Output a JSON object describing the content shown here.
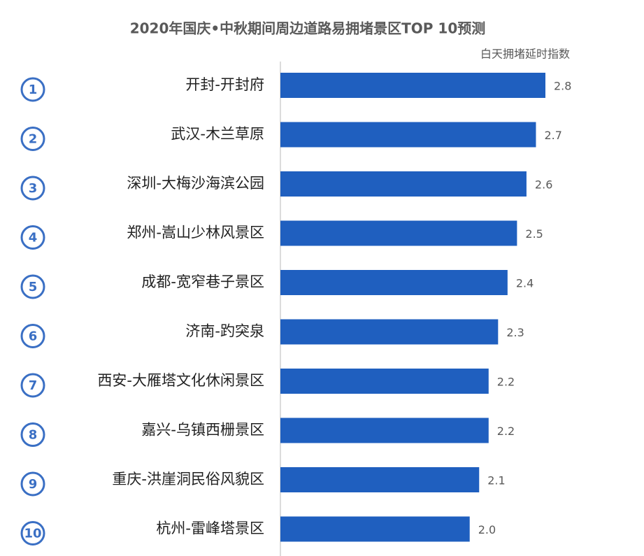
{
  "chart_data": {
    "type": "hbar",
    "title": "2020年国庆•中秋期间周边道路易拥堵景区TOP 10预测",
    "xlabel": "白天拥堵延时指数",
    "ranks": [
      1,
      2,
      3,
      4,
      5,
      6,
      7,
      8,
      9,
      10
    ],
    "categories": [
      "开封-开封府",
      "武汉-木兰草原",
      "深圳-大梅沙海滨公园",
      "郑州-嵩山少林风景区",
      "成都-宽窄巷子景区",
      "济南-趵突泉",
      "西安-大雁塔文化休闲景区",
      "嘉兴-乌镇西栅景区",
      "重庆-洪崖洞民俗风貌区",
      "杭州-雷峰塔景区"
    ],
    "values": [
      2.8,
      2.7,
      2.6,
      2.5,
      2.4,
      2.3,
      2.2,
      2.2,
      2.1,
      2.0
    ],
    "value_labels": [
      "2.8",
      "2.7",
      "2.6",
      "2.5",
      "2.4",
      "2.3",
      "2.2",
      "2.2",
      "2.1",
      "2.0"
    ],
    "color": "#1f5fbf"
  }
}
